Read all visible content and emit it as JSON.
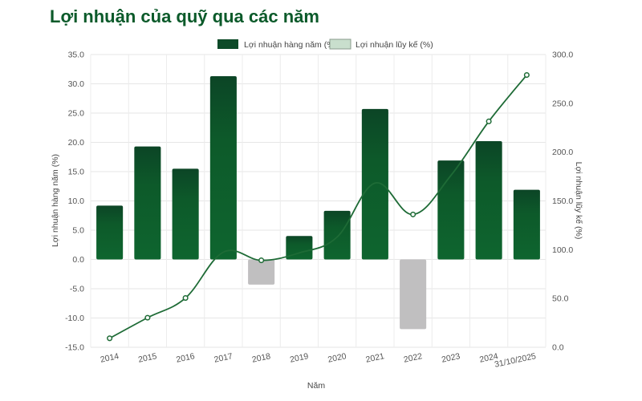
{
  "page_title": "Lợi nhuận của quỹ qua các năm",
  "chart_data": {
    "type": "bar",
    "categories": [
      "2014",
      "2015",
      "2016",
      "2017",
      "2018",
      "2019",
      "2020",
      "2021",
      "2022",
      "2023",
      "2024",
      "31/10/2025"
    ],
    "series": [
      {
        "name": "Lợi nhuận hàng năm (%)",
        "type": "bar",
        "axis": "left",
        "values": [
          9.2,
          19.3,
          15.5,
          31.3,
          -4.3,
          4.0,
          8.3,
          25.7,
          -11.9,
          16.9,
          20.2,
          11.9
        ],
        "color": "#0d5a2a",
        "negative_color": "#c0bfc0"
      },
      {
        "name": "Lợi nhuận lũy kế (%)",
        "type": "line",
        "axis": "right",
        "values": [
          9.2,
          30.3,
          50.5,
          97.5,
          89.1,
          96.7,
          113.0,
          168.3,
          136.1,
          176.1,
          231.5,
          279.0
        ],
        "color": "#1e6b36"
      }
    ],
    "xlabel": "Năm",
    "ylabel": "Lợi nhuận hàng năm (%)",
    "y2label": "Lợi nhuận lũy kế (%)",
    "ylim": [
      -15,
      35
    ],
    "yticks": [
      "-15.0",
      "-10.0",
      "-5.0",
      "0.0",
      "5.0",
      "10.0",
      "15.0",
      "20.0",
      "25.0",
      "30.0",
      "35.0"
    ],
    "y2lim": [
      0,
      300
    ],
    "y2ticks": [
      "0.0",
      "50.0",
      "100.0",
      "150.0",
      "200.0",
      "250.0",
      "300.0"
    ],
    "legend_position": "top-center",
    "grid": true
  }
}
